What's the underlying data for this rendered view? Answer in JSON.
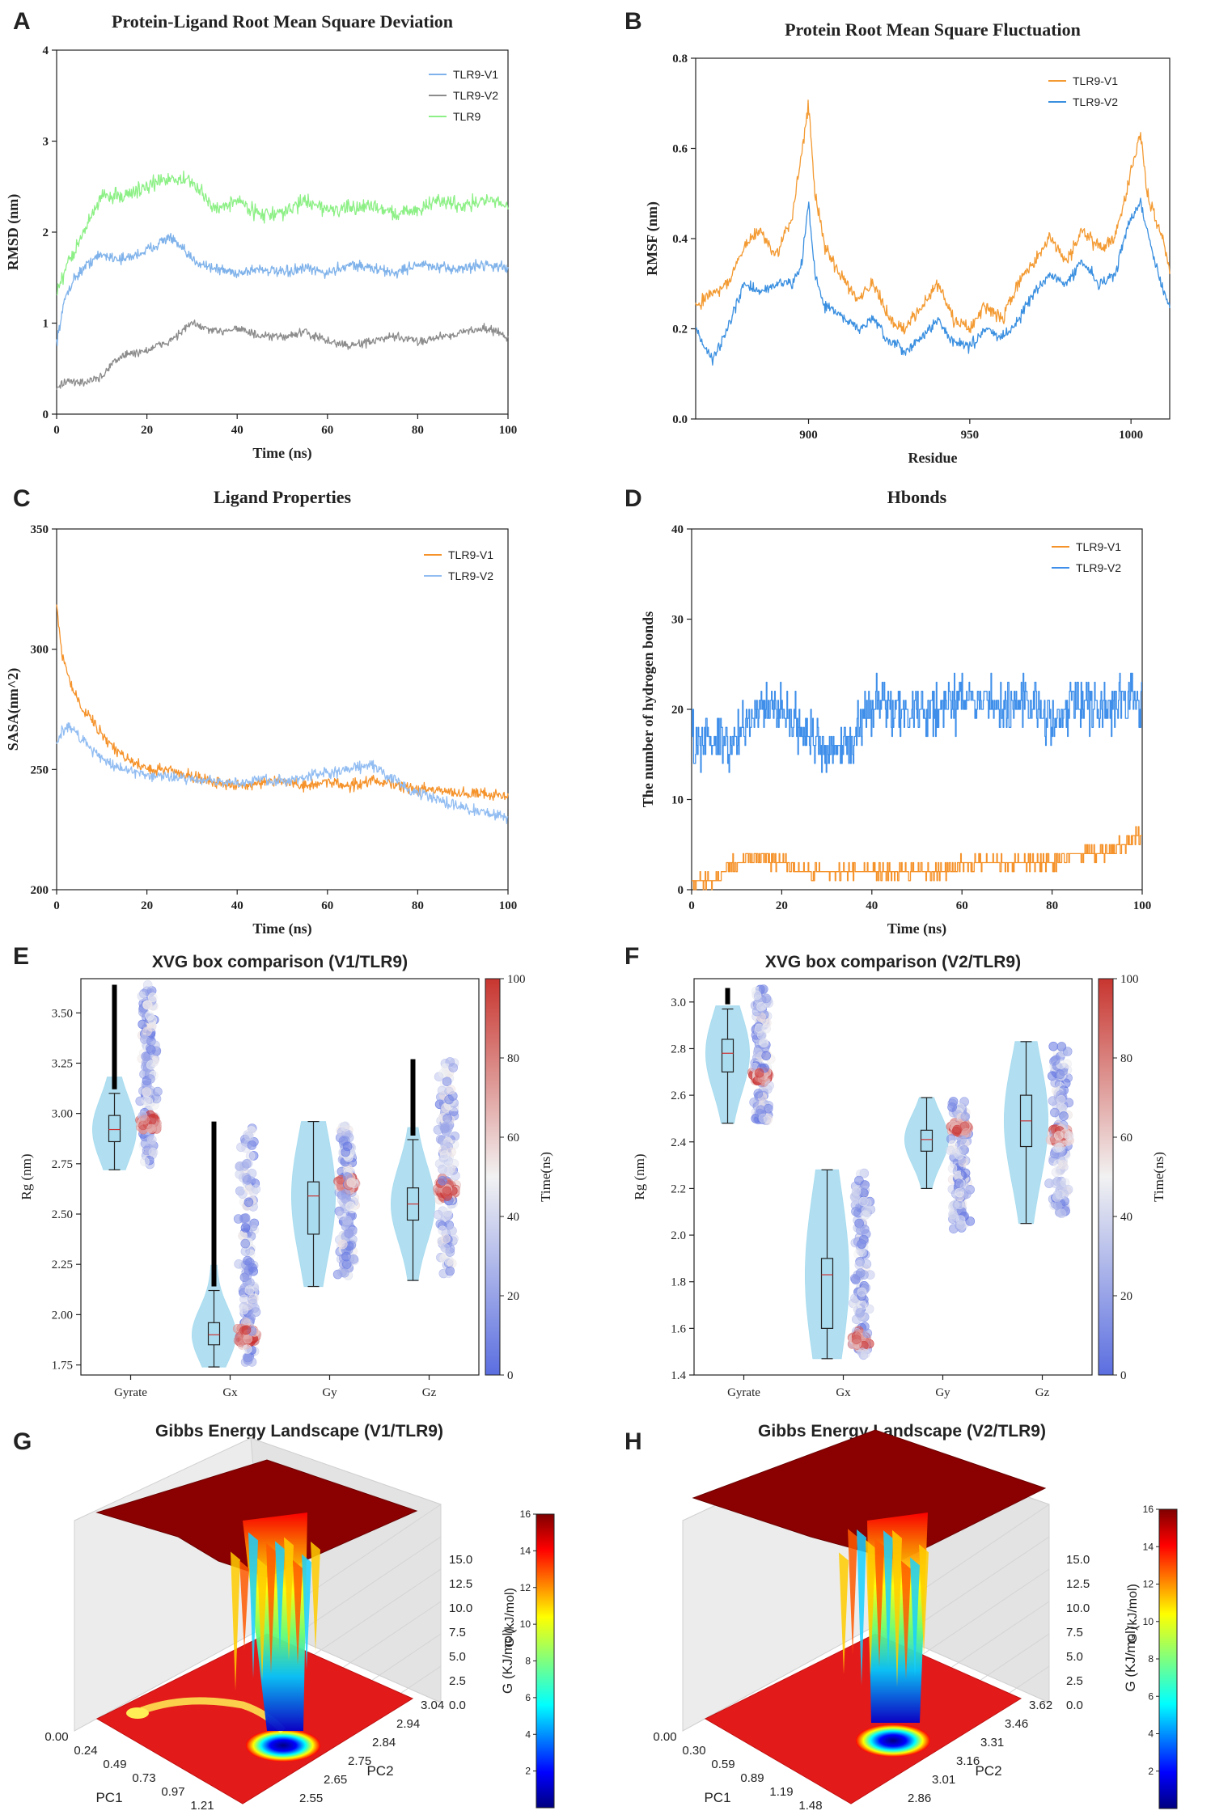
{
  "chart_data": [
    {
      "panel": "A",
      "type": "line",
      "title": "Protein-Ligand Root Mean Square Deviation",
      "xlabel": "Time (ns)",
      "ylabel": "RMSD (nm)",
      "xlim": [
        0,
        100
      ],
      "ylim": [
        0,
        4
      ],
      "xticks": [
        "0",
        "20",
        "40",
        "60",
        "80",
        "100"
      ],
      "yticks": [
        "0",
        "1",
        "2",
        "3",
        "4"
      ],
      "legend_position": "top-right",
      "series": [
        {
          "name": "TLR9-V1",
          "color": "#7fb2ea",
          "x": [
            0,
            2,
            4,
            6,
            8,
            10,
            15,
            20,
            25,
            30,
            35,
            40,
            45,
            50,
            55,
            60,
            65,
            70,
            75,
            80,
            85,
            90,
            95,
            100
          ],
          "values": [
            0.8,
            1.3,
            1.5,
            1.6,
            1.7,
            1.75,
            1.7,
            1.8,
            1.95,
            1.7,
            1.6,
            1.55,
            1.6,
            1.55,
            1.6,
            1.55,
            1.65,
            1.6,
            1.55,
            1.65,
            1.6,
            1.6,
            1.65,
            1.6
          ]
        },
        {
          "name": "TLR9-V2",
          "color": "#8c8c8c",
          "x": [
            0,
            2,
            4,
            6,
            8,
            10,
            12,
            15,
            20,
            25,
            30,
            35,
            40,
            45,
            50,
            55,
            60,
            65,
            70,
            75,
            80,
            85,
            90,
            95,
            100
          ],
          "values": [
            0.3,
            0.35,
            0.35,
            0.35,
            0.38,
            0.4,
            0.55,
            0.65,
            0.7,
            0.8,
            1.0,
            0.9,
            0.95,
            0.85,
            0.85,
            0.9,
            0.8,
            0.75,
            0.8,
            0.85,
            0.8,
            0.85,
            0.9,
            0.95,
            0.85
          ]
        },
        {
          "name": "TLR9",
          "color": "#8df086",
          "x": [
            0,
            2,
            4,
            6,
            8,
            10,
            15,
            20,
            25,
            30,
            35,
            40,
            45,
            50,
            55,
            60,
            65,
            70,
            75,
            80,
            85,
            90,
            95,
            100
          ],
          "values": [
            1.3,
            1.6,
            1.8,
            2.0,
            2.2,
            2.4,
            2.4,
            2.5,
            2.6,
            2.55,
            2.25,
            2.35,
            2.2,
            2.2,
            2.35,
            2.25,
            2.25,
            2.3,
            2.2,
            2.25,
            2.35,
            2.3,
            2.35,
            2.3
          ]
        }
      ]
    },
    {
      "panel": "B",
      "type": "line",
      "title": "Protein Root Mean Square Fluctuation",
      "xlabel": "Residue",
      "ylabel": "RMSF (nm)",
      "xlim": [
        865,
        1012
      ],
      "ylim": [
        0,
        0.8
      ],
      "xticks": [
        "900",
        "950",
        "1000"
      ],
      "yticks": [
        "0.0",
        "0.2",
        "0.4",
        "0.6",
        "0.8"
      ],
      "legend_position": "top-right",
      "series": [
        {
          "name": "TLR9-V1",
          "color": "#f39a32",
          "x": [
            865,
            870,
            875,
            880,
            885,
            890,
            895,
            898,
            900,
            902,
            905,
            910,
            915,
            920,
            925,
            930,
            935,
            940,
            945,
            950,
            955,
            960,
            965,
            970,
            975,
            980,
            985,
            990,
            995,
            1000,
            1003,
            1005,
            1010,
            1012
          ],
          "values": [
            0.25,
            0.28,
            0.3,
            0.38,
            0.42,
            0.36,
            0.45,
            0.6,
            0.7,
            0.5,
            0.38,
            0.32,
            0.27,
            0.3,
            0.22,
            0.2,
            0.25,
            0.3,
            0.22,
            0.2,
            0.25,
            0.22,
            0.3,
            0.35,
            0.4,
            0.35,
            0.42,
            0.38,
            0.4,
            0.55,
            0.63,
            0.5,
            0.4,
            0.33
          ]
        },
        {
          "name": "TLR9-V2",
          "color": "#3a8fe0",
          "x": [
            865,
            870,
            875,
            880,
            885,
            890,
            895,
            898,
            900,
            902,
            905,
            910,
            915,
            920,
            925,
            930,
            935,
            940,
            945,
            950,
            955,
            960,
            965,
            970,
            975,
            980,
            985,
            990,
            995,
            1000,
            1003,
            1005,
            1010,
            1012
          ],
          "values": [
            0.2,
            0.13,
            0.2,
            0.3,
            0.28,
            0.3,
            0.3,
            0.35,
            0.48,
            0.32,
            0.25,
            0.23,
            0.2,
            0.22,
            0.17,
            0.15,
            0.18,
            0.22,
            0.17,
            0.16,
            0.2,
            0.18,
            0.22,
            0.28,
            0.32,
            0.3,
            0.35,
            0.3,
            0.32,
            0.45,
            0.48,
            0.42,
            0.28,
            0.25
          ]
        }
      ]
    },
    {
      "panel": "C",
      "type": "line",
      "title": "Ligand Properties",
      "xlabel": "Time (ns)",
      "ylabel": "SASA(nm^2)",
      "xlim": [
        0,
        100
      ],
      "ylim": [
        200,
        350
      ],
      "xticks": [
        "0",
        "20",
        "40",
        "60",
        "80",
        "100"
      ],
      "yticks": [
        "200",
        "250",
        "300",
        "350"
      ],
      "legend_position": "top-right",
      "series": [
        {
          "name": "TLR9-V1",
          "color": "#f5922a",
          "x": [
            0,
            1,
            2,
            4,
            6,
            8,
            10,
            12,
            15,
            20,
            25,
            30,
            35,
            40,
            45,
            50,
            55,
            60,
            65,
            70,
            75,
            80,
            85,
            90,
            95,
            100
          ],
          "values": [
            318,
            300,
            292,
            282,
            275,
            270,
            265,
            260,
            255,
            250,
            250,
            247,
            245,
            243,
            244,
            245,
            243,
            245,
            243,
            246,
            243,
            242,
            241,
            240,
            240,
            239
          ]
        },
        {
          "name": "TLR9-V2",
          "color": "#92bdf2",
          "x": [
            0,
            1,
            2,
            4,
            6,
            8,
            10,
            12,
            15,
            20,
            25,
            30,
            35,
            40,
            45,
            50,
            55,
            60,
            65,
            70,
            75,
            80,
            85,
            90,
            95,
            100
          ],
          "values": [
            260,
            265,
            268,
            266,
            262,
            258,
            255,
            252,
            250,
            248,
            247,
            246,
            245,
            244,
            246,
            245,
            247,
            248,
            250,
            252,
            245,
            240,
            237,
            234,
            232,
            230
          ]
        }
      ]
    },
    {
      "panel": "D",
      "type": "line",
      "title": "Hbonds",
      "xlabel": "Time (ns)",
      "ylabel": "The number of hydrogen bonds",
      "xlim": [
        0,
        100
      ],
      "ylim": [
        0,
        40
      ],
      "xticks": [
        "0",
        "20",
        "40",
        "60",
        "80",
        "100"
      ],
      "yticks": [
        "0",
        "10",
        "20",
        "30",
        "40"
      ],
      "legend_position": "top-right",
      "series": [
        {
          "name": "TLR9-V1",
          "color": "#f5922a",
          "x": [
            0,
            5,
            10,
            15,
            20,
            25,
            30,
            35,
            40,
            45,
            50,
            55,
            60,
            65,
            70,
            75,
            80,
            85,
            90,
            95,
            100
          ],
          "values": [
            1,
            1,
            3,
            4,
            3,
            2,
            2,
            2,
            2,
            2,
            2,
            2,
            3,
            3,
            3,
            3,
            3,
            4,
            4,
            5,
            6
          ]
        },
        {
          "name": "TLR9-V2",
          "color": "#3f8fea",
          "x": [
            0,
            5,
            10,
            15,
            20,
            25,
            30,
            35,
            40,
            45,
            50,
            55,
            60,
            65,
            70,
            75,
            80,
            85,
            90,
            95,
            100
          ],
          "values": [
            17,
            16,
            17,
            20,
            20,
            17,
            15,
            16,
            21,
            20,
            20,
            20,
            21,
            21,
            20,
            21,
            19,
            21,
            20,
            21,
            21
          ]
        }
      ]
    },
    {
      "panel": "E",
      "type": "violin",
      "title": "XVG box comparison (V1/TLR9)",
      "xlabel": "",
      "ylabel": "Rg (nm)",
      "categories": [
        "Gyrate",
        "Gx",
        "Gy",
        "Gz"
      ],
      "ylim": [
        1.7,
        3.67
      ],
      "yticks": [
        "1.75",
        "2.00",
        "2.25",
        "2.50",
        "2.75",
        "3.00",
        "3.25",
        "3.50"
      ],
      "box": [
        {
          "min": 2.72,
          "q1": 2.86,
          "median": 2.92,
          "q3": 2.99,
          "max": 3.1,
          "outlier_max": 3.64
        },
        {
          "min": 1.74,
          "q1": 1.85,
          "median": 1.9,
          "q3": 1.96,
          "max": 2.12,
          "outlier_max": 2.96
        },
        {
          "min": 2.14,
          "q1": 2.4,
          "median": 2.59,
          "q3": 2.66,
          "max": 2.96,
          "outlier_max": 2.96
        },
        {
          "min": 2.17,
          "q1": 2.47,
          "median": 2.55,
          "q3": 2.63,
          "max": 2.87,
          "outlier_max": 3.27
        }
      ],
      "scatter_range": [
        [
          2.74,
          3.64
        ],
        [
          1.76,
          2.95
        ],
        [
          2.18,
          2.94
        ],
        [
          2.2,
          3.26
        ]
      ],
      "late_time_center": [
        2.95,
        1.9,
        2.65,
        2.62
      ],
      "colorbar": {
        "label": "Time(ns)",
        "min": 0,
        "max": 100,
        "ticks": [
          "0",
          "20",
          "40",
          "60",
          "80",
          "100"
        ]
      }
    },
    {
      "panel": "F",
      "type": "violin",
      "title": "XVG box comparison (V2/TLR9)",
      "xlabel": "",
      "ylabel": "Rg (nm)",
      "categories": [
        "Gyrate",
        "Gx",
        "Gy",
        "Gz"
      ],
      "ylim": [
        1.4,
        3.1
      ],
      "yticks": [
        "1.4",
        "1.6",
        "1.8",
        "2.0",
        "2.2",
        "2.4",
        "2.6",
        "2.8",
        "3.0"
      ],
      "box": [
        {
          "min": 2.48,
          "q1": 2.7,
          "median": 2.78,
          "q3": 2.84,
          "max": 2.97,
          "outlier_max": 3.06
        },
        {
          "min": 1.47,
          "q1": 1.6,
          "median": 1.83,
          "q3": 1.9,
          "max": 2.28,
          "outlier_max": 2.28
        },
        {
          "min": 2.2,
          "q1": 2.36,
          "median": 2.41,
          "q3": 2.45,
          "max": 2.59,
          "outlier_max": 2.59
        },
        {
          "min": 2.05,
          "q1": 2.38,
          "median": 2.49,
          "q3": 2.6,
          "max": 2.83,
          "outlier_max": 2.83
        }
      ],
      "scatter_range": [
        [
          2.49,
          3.06
        ],
        [
          1.48,
          2.27
        ],
        [
          2.02,
          2.58
        ],
        [
          2.08,
          2.82
        ]
      ],
      "late_time_center": [
        2.68,
        1.55,
        2.46,
        2.43
      ],
      "colorbar": {
        "label": "Time(ns)",
        "min": 0,
        "max": 100,
        "ticks": [
          "0",
          "20",
          "40",
          "60",
          "80",
          "100"
        ]
      }
    },
    {
      "panel": "G",
      "type": "surface3d",
      "title": "Gibbs Energy Landscape (V1/TLR9)",
      "xlabel": "PC1",
      "ylabel": "PC2",
      "zlabel": "G (kJ/mol)",
      "pc1_ticks": [
        "0.00",
        "0.24",
        "0.49",
        "0.73",
        "0.97",
        "1.21"
      ],
      "pc2_ticks": [
        "2.55",
        "2.65",
        "2.75",
        "2.84",
        "2.94",
        "3.04"
      ],
      "z_ticks": [
        "0.0",
        "2.5",
        "5.0",
        "7.5",
        "10.0",
        "12.5",
        "15.0"
      ],
      "colorbar": {
        "label": "G (KJ/mol)",
        "min": 0,
        "max": 16,
        "ticks": [
          "2",
          "4",
          "6",
          "8",
          "10",
          "12",
          "14",
          "16"
        ]
      }
    },
    {
      "panel": "H",
      "type": "surface3d",
      "title": "Gibbs Energy Landscape (V2/TLR9)",
      "xlabel": "PC1",
      "ylabel": "PC2",
      "zlabel": "G (kJ/mol)",
      "pc1_ticks": [
        "0.00",
        "0.30",
        "0.59",
        "0.89",
        "1.19",
        "1.48"
      ],
      "pc2_ticks": [
        "2.86",
        "3.01",
        "3.16",
        "3.31",
        "3.46",
        "3.62"
      ],
      "z_ticks": [
        "0.0",
        "2.5",
        "5.0",
        "7.5",
        "10.0",
        "12.5",
        "15.0"
      ],
      "colorbar": {
        "label": "G (KJ/mol)",
        "min": 0,
        "max": 16,
        "ticks": [
          "2",
          "4",
          "6",
          "8",
          "10",
          "12",
          "14",
          "16"
        ]
      }
    }
  ]
}
